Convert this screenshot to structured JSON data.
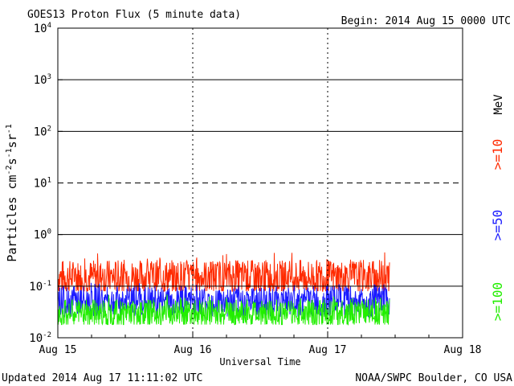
{
  "header": {
    "title": "GOES13 Proton Flux (5 minute data)",
    "begin": "Begin: 2014 Aug 15 0000 UTC"
  },
  "footer": {
    "updated": "Updated 2014 Aug 17 11:11:02 UTC",
    "source": "NOAA/SWPC Boulder, CO USA"
  },
  "legend": {
    "unit": "MeV",
    "items": [
      {
        "label": ">=10",
        "color": "#ff2a00"
      },
      {
        "label": ">=50",
        "color": "#1a1aff"
      },
      {
        "label": ">=100",
        "color": "#22ee00"
      }
    ]
  },
  "chart_data": {
    "type": "line",
    "title": "GOES13 Proton Flux (5 minute data)",
    "xlabel": "Universal Time",
    "ylabel": "Particles cm^-2 s^-1 sr^-1",
    "y_scale": "log",
    "ylim": [
      0.01,
      10000
    ],
    "xlim": [
      "2014-08-15 00:00",
      "2014-08-18 00:00"
    ],
    "x_ticks": [
      "Aug 15",
      "Aug 16",
      "Aug 17",
      "Aug 18"
    ],
    "y_ticks": [
      {
        "base": "10",
        "exp": "-2"
      },
      {
        "base": "10",
        "exp": "-1"
      },
      {
        "base": "10",
        "exp": "0"
      },
      {
        "base": "10",
        "exp": "1"
      },
      {
        "base": "10",
        "exp": "2"
      },
      {
        "base": "10",
        "exp": "3"
      },
      {
        "base": "10",
        "exp": "4"
      }
    ],
    "series": [
      {
        "name": ">=10 MeV",
        "color": "#ff2a00",
        "x_range": [
          "2014-08-15 00:00",
          "2014-08-17 11:00"
        ],
        "typical": 0.15,
        "min": 0.08,
        "max": 0.45
      },
      {
        "name": ">=50 MeV",
        "color": "#1a1aff",
        "x_range": [
          "2014-08-15 00:00",
          "2014-08-17 11:00"
        ],
        "typical": 0.05,
        "min": 0.025,
        "max": 0.12
      },
      {
        "name": ">=100 MeV",
        "color": "#22ee00",
        "x_range": [
          "2014-08-15 00:00",
          "2014-08-17 11:00"
        ],
        "typical": 0.03,
        "min": 0.018,
        "max": 0.07
      }
    ],
    "dashed_lines": [
      10
    ],
    "grid": "horizontal at decades"
  }
}
